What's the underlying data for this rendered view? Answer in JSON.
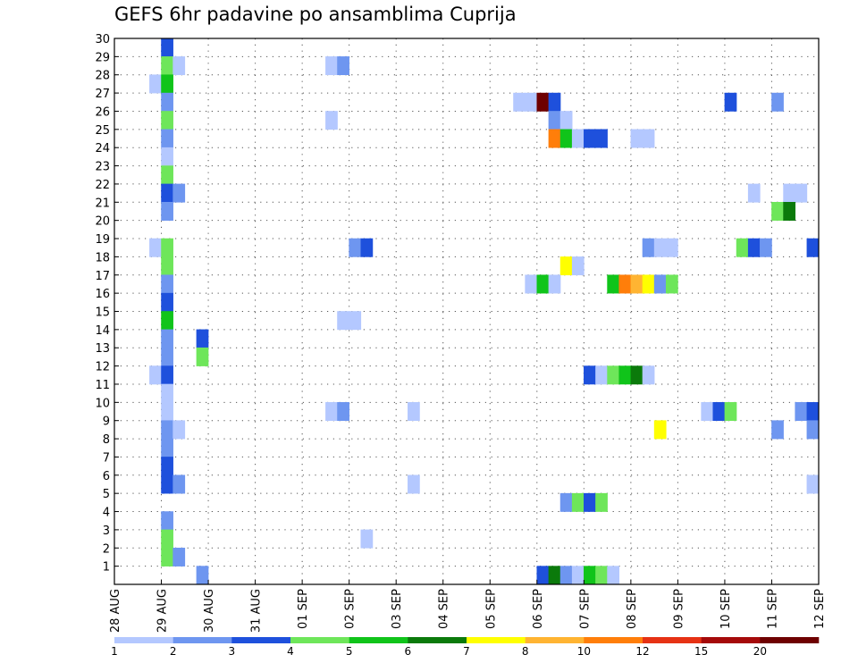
{
  "chart_data": {
    "type": "heatmap",
    "title": "GEFS 6hr padavine po ansamblima Cuprija",
    "xlabel": "",
    "ylabel": "",
    "x_ticks": [
      "28 AUG",
      "29 AUG",
      "30 AUG",
      "31 AUG",
      "01 SEP",
      "02 SEP",
      "03 SEP",
      "04 SEP",
      "05 SEP",
      "06 SEP",
      "07 SEP",
      "08 SEP",
      "09 SEP",
      "10 SEP",
      "11 SEP",
      "12 SEP"
    ],
    "y_ticks": [
      1,
      2,
      3,
      4,
      5,
      6,
      7,
      8,
      9,
      10,
      11,
      12,
      13,
      14,
      15,
      16,
      17,
      18,
      19,
      20,
      21,
      22,
      23,
      24,
      25,
      26,
      27,
      28,
      29,
      30
    ],
    "x_unit": "6-hour step from 28 AUG 00Z",
    "xlim": [
      0,
      60
    ],
    "ylim": [
      0,
      30
    ],
    "grid": "dotted",
    "colorbar": {
      "position": "bottom",
      "labels": [
        "1",
        "2",
        "3",
        "4",
        "5",
        "6",
        "7",
        "8",
        "10",
        "12",
        "15",
        "20"
      ],
      "colors": [
        "#b4c8ff",
        "#6e96f0",
        "#1e50dc",
        "#6ee65a",
        "#10c41a",
        "#0b7a0b",
        "#ffff00",
        "#ffb432",
        "#ff7e0a",
        "#e63214",
        "#a50a0a",
        "#6e0000"
      ]
    },
    "cells": [
      {
        "member": 30,
        "step": 4,
        "class": 3
      },
      {
        "member": 29,
        "step": 4,
        "class": 4
      },
      {
        "member": 29,
        "step": 5,
        "class": 1
      },
      {
        "member": 29,
        "step": 18,
        "class": 1
      },
      {
        "member": 29,
        "step": 19,
        "class": 2
      },
      {
        "member": 28,
        "step": 3,
        "class": 1
      },
      {
        "member": 28,
        "step": 4,
        "class": 5
      },
      {
        "member": 27,
        "step": 4,
        "class": 2
      },
      {
        "member": 27,
        "step": 34,
        "class": 1
      },
      {
        "member": 27,
        "step": 35,
        "class": 1
      },
      {
        "member": 27,
        "step": 36,
        "class": 12
      },
      {
        "member": 27,
        "step": 37,
        "class": 3
      },
      {
        "member": 27,
        "step": 52,
        "class": 3
      },
      {
        "member": 27,
        "step": 56,
        "class": 2
      },
      {
        "member": 26,
        "step": 4,
        "class": 4
      },
      {
        "member": 26,
        "step": 18,
        "class": 1
      },
      {
        "member": 26,
        "step": 37,
        "class": 2
      },
      {
        "member": 26,
        "step": 38,
        "class": 1
      },
      {
        "member": 25,
        "step": 4,
        "class": 2
      },
      {
        "member": 25,
        "step": 37,
        "class": 9
      },
      {
        "member": 25,
        "step": 38,
        "class": 5
      },
      {
        "member": 25,
        "step": 39,
        "class": 1
      },
      {
        "member": 25,
        "step": 40,
        "class": 3
      },
      {
        "member": 25,
        "step": 41,
        "class": 3
      },
      {
        "member": 25,
        "step": 44,
        "class": 1
      },
      {
        "member": 25,
        "step": 45,
        "class": 1
      },
      {
        "member": 24,
        "step": 4,
        "class": 1
      },
      {
        "member": 23,
        "step": 4,
        "class": 4
      },
      {
        "member": 22,
        "step": 4,
        "class": 3
      },
      {
        "member": 22,
        "step": 5,
        "class": 2
      },
      {
        "member": 22,
        "step": 54,
        "class": 1
      },
      {
        "member": 22,
        "step": 57,
        "class": 1
      },
      {
        "member": 22,
        "step": 58,
        "class": 1
      },
      {
        "member": 21,
        "step": 4,
        "class": 2
      },
      {
        "member": 21,
        "step": 56,
        "class": 4
      },
      {
        "member": 21,
        "step": 57,
        "class": 6
      },
      {
        "member": 19,
        "step": 3,
        "class": 1
      },
      {
        "member": 19,
        "step": 4,
        "class": 4
      },
      {
        "member": 19,
        "step": 20,
        "class": 2
      },
      {
        "member": 19,
        "step": 21,
        "class": 3
      },
      {
        "member": 19,
        "step": 45,
        "class": 2
      },
      {
        "member": 19,
        "step": 46,
        "class": 1
      },
      {
        "member": 19,
        "step": 47,
        "class": 1
      },
      {
        "member": 19,
        "step": 53,
        "class": 4
      },
      {
        "member": 19,
        "step": 54,
        "class": 3
      },
      {
        "member": 19,
        "step": 55,
        "class": 2
      },
      {
        "member": 19,
        "step": 59,
        "class": 3
      },
      {
        "member": 18,
        "step": 4,
        "class": 4
      },
      {
        "member": 18,
        "step": 38,
        "class": 7
      },
      {
        "member": 18,
        "step": 39,
        "class": 1
      },
      {
        "member": 17,
        "step": 4,
        "class": 2
      },
      {
        "member": 17,
        "step": 35,
        "class": 1
      },
      {
        "member": 17,
        "step": 36,
        "class": 5
      },
      {
        "member": 17,
        "step": 37,
        "class": 1
      },
      {
        "member": 17,
        "step": 42,
        "class": 5
      },
      {
        "member": 17,
        "step": 43,
        "class": 9
      },
      {
        "member": 17,
        "step": 44,
        "class": 8
      },
      {
        "member": 17,
        "step": 45,
        "class": 7
      },
      {
        "member": 17,
        "step": 46,
        "class": 2
      },
      {
        "member": 17,
        "step": 47,
        "class": 4
      },
      {
        "member": 16,
        "step": 4,
        "class": 3
      },
      {
        "member": 15,
        "step": 4,
        "class": 5
      },
      {
        "member": 15,
        "step": 19,
        "class": 1
      },
      {
        "member": 15,
        "step": 20,
        "class": 1
      },
      {
        "member": 14,
        "step": 4,
        "class": 2
      },
      {
        "member": 14,
        "step": 7,
        "class": 3
      },
      {
        "member": 13,
        "step": 4,
        "class": 2
      },
      {
        "member": 13,
        "step": 7,
        "class": 4
      },
      {
        "member": 12,
        "step": 3,
        "class": 1
      },
      {
        "member": 12,
        "step": 4,
        "class": 3
      },
      {
        "member": 12,
        "step": 40,
        "class": 3
      },
      {
        "member": 12,
        "step": 41,
        "class": 1
      },
      {
        "member": 12,
        "step": 42,
        "class": 4
      },
      {
        "member": 12,
        "step": 43,
        "class": 5
      },
      {
        "member": 12,
        "step": 44,
        "class": 6
      },
      {
        "member": 12,
        "step": 45,
        "class": 1
      },
      {
        "member": 11,
        "step": 4,
        "class": 1
      },
      {
        "member": 10,
        "step": 4,
        "class": 1
      },
      {
        "member": 10,
        "step": 18,
        "class": 1
      },
      {
        "member": 10,
        "step": 19,
        "class": 2
      },
      {
        "member": 10,
        "step": 25,
        "class": 1
      },
      {
        "member": 10,
        "step": 50,
        "class": 1
      },
      {
        "member": 10,
        "step": 51,
        "class": 3
      },
      {
        "member": 10,
        "step": 52,
        "class": 4
      },
      {
        "member": 10,
        "step": 58,
        "class": 2
      },
      {
        "member": 10,
        "step": 59,
        "class": 3
      },
      {
        "member": 9,
        "step": 4,
        "class": 2
      },
      {
        "member": 9,
        "step": 5,
        "class": 1
      },
      {
        "member": 9,
        "step": 46,
        "class": 7
      },
      {
        "member": 9,
        "step": 56,
        "class": 2
      },
      {
        "member": 9,
        "step": 59,
        "class": 2
      },
      {
        "member": 8,
        "step": 4,
        "class": 2
      },
      {
        "member": 7,
        "step": 4,
        "class": 3
      },
      {
        "member": 6,
        "step": 4,
        "class": 3
      },
      {
        "member": 6,
        "step": 5,
        "class": 2
      },
      {
        "member": 6,
        "step": 25,
        "class": 1
      },
      {
        "member": 6,
        "step": 59,
        "class": 1
      },
      {
        "member": 5,
        "step": 38,
        "class": 2
      },
      {
        "member": 5,
        "step": 39,
        "class": 4
      },
      {
        "member": 5,
        "step": 40,
        "class": 3
      },
      {
        "member": 5,
        "step": 41,
        "class": 4
      },
      {
        "member": 4,
        "step": 4,
        "class": 2
      },
      {
        "member": 3,
        "step": 4,
        "class": 4
      },
      {
        "member": 3,
        "step": 21,
        "class": 1
      },
      {
        "member": 2,
        "step": 4,
        "class": 4
      },
      {
        "member": 2,
        "step": 5,
        "class": 2
      },
      {
        "member": 1,
        "step": 7,
        "class": 2
      },
      {
        "member": 1,
        "step": 36,
        "class": 3
      },
      {
        "member": 1,
        "step": 37,
        "class": 6
      },
      {
        "member": 1,
        "step": 38,
        "class": 2
      },
      {
        "member": 1,
        "step": 39,
        "class": 1
      },
      {
        "member": 1,
        "step": 40,
        "class": 5
      },
      {
        "member": 1,
        "step": 41,
        "class": 4
      },
      {
        "member": 1,
        "step": 42,
        "class": 1
      }
    ]
  }
}
